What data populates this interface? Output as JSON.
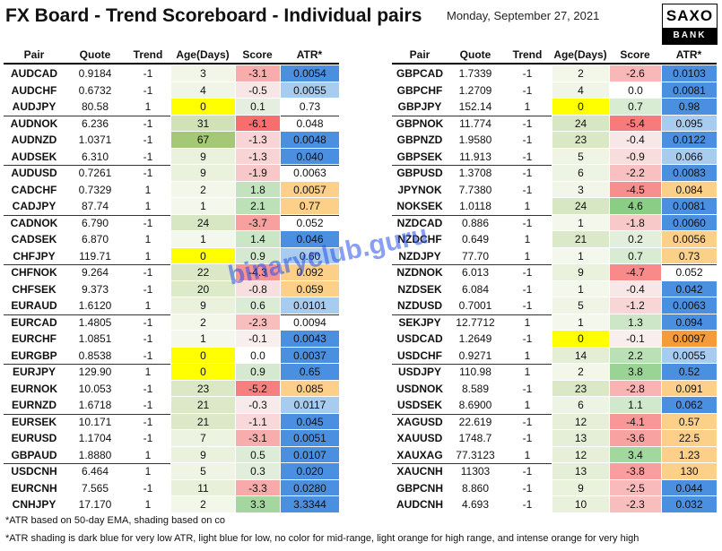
{
  "header": {
    "title": "FX Board - Trend Scoreboard - Individual pairs",
    "date": "Monday, September 27, 2021",
    "logo": [
      "SAXO",
      "BANK"
    ]
  },
  "watermark": "binaryclub.guru",
  "tables": [
    {
      "columns": [
        "Pair",
        "Quote",
        "Trend",
        "Age(Days)",
        "Score",
        "ATR*"
      ],
      "rows": [
        [
          "AUDCAD",
          "0.9184",
          "-1",
          "3",
          "-3.1",
          "0.0054"
        ],
        [
          "AUDCHF",
          "0.6732",
          "-1",
          "4",
          "-0.5",
          "0.0055"
        ],
        [
          "AUDJPY",
          "80.58",
          "1",
          "0",
          "0.1",
          "0.73"
        ],
        [
          "AUDNOK",
          "6.236",
          "-1",
          "31",
          "-6.1",
          "0.048"
        ],
        [
          "AUDNZD",
          "1.0371",
          "-1",
          "67",
          "-1.3",
          "0.0048"
        ],
        [
          "AUDSEK",
          "6.310",
          "-1",
          "9",
          "-1.3",
          "0.040"
        ],
        [
          "AUDUSD",
          "0.7261",
          "-1",
          "9",
          "-1.9",
          "0.0063"
        ],
        [
          "CADCHF",
          "0.7329",
          "1",
          "2",
          "1.8",
          "0.0057"
        ],
        [
          "CADJPY",
          "87.74",
          "1",
          "1",
          "2.1",
          "0.77"
        ],
        [
          "CADNOK",
          "6.790",
          "-1",
          "24",
          "-3.7",
          "0.052"
        ],
        [
          "CADSEK",
          "6.870",
          "1",
          "1",
          "1.4",
          "0.046"
        ],
        [
          "CHFJPY",
          "119.71",
          "1",
          "0",
          "0.9",
          "0.60"
        ],
        [
          "CHFNOK",
          "9.264",
          "-1",
          "22",
          "-4.3",
          "0.092"
        ],
        [
          "CHFSEK",
          "9.373",
          "-1",
          "20",
          "-0.8",
          "0.059"
        ],
        [
          "EURAUD",
          "1.6120",
          "1",
          "9",
          "0.6",
          "0.0101"
        ],
        [
          "EURCAD",
          "1.4805",
          "-1",
          "2",
          "-2.3",
          "0.0094"
        ],
        [
          "EURCHF",
          "1.0851",
          "-1",
          "1",
          "-0.1",
          "0.0043"
        ],
        [
          "EURGBP",
          "0.8538",
          "-1",
          "0",
          "0.0",
          "0.0037"
        ],
        [
          "EURJPY",
          "129.90",
          "1",
          "0",
          "0.9",
          "0.65"
        ],
        [
          "EURNOK",
          "10.053",
          "-1",
          "23",
          "-5.2",
          "0.085"
        ],
        [
          "EURNZD",
          "1.6718",
          "-1",
          "21",
          "-0.3",
          "0.0117"
        ],
        [
          "EURSEK",
          "10.171",
          "-1",
          "21",
          "-1.1",
          "0.045"
        ],
        [
          "EURUSD",
          "1.1704",
          "-1",
          "7",
          "-3.1",
          "0.0051"
        ],
        [
          "GBPAUD",
          "1.8880",
          "1",
          "9",
          "0.5",
          "0.0107"
        ],
        [
          "USDCNH",
          "6.464",
          "1",
          "5",
          "0.3",
          "0.020"
        ],
        [
          "EURCNH",
          "7.565",
          "-1",
          "11",
          "-3.3",
          "0.0280"
        ],
        [
          "CNHJPY",
          "17.170",
          "1",
          "2",
          "3.3",
          "3.3344"
        ]
      ],
      "atr_colors": [
        "#4a8fe0",
        "#a8ccf0",
        null,
        null,
        "#4a8fe0",
        "#4a8fe0",
        null,
        "#fdd08a",
        "#fdd08a",
        null,
        "#4a8fe0",
        "#a8ccf0",
        "#fdd08a",
        "#fdd08a",
        "#a8ccf0",
        null,
        "#4a8fe0",
        "#4a8fe0",
        "#4a8fe0",
        "#fdd08a",
        "#a8ccf0",
        "#4a8fe0",
        "#4a8fe0",
        "#4a8fe0",
        "#4a8fe0",
        "#4a8fe0",
        "#4a8fe0"
      ]
    },
    {
      "columns": [
        "Pair",
        "Quote",
        "Trend",
        "Age(Days)",
        "Score",
        "ATR*"
      ],
      "rows": [
        [
          "GBPCAD",
          "1.7339",
          "-1",
          "2",
          "-2.6",
          "0.0103"
        ],
        [
          "GBPCHF",
          "1.2709",
          "-1",
          "4",
          "0.0",
          "0.0081"
        ],
        [
          "GBPJPY",
          "152.14",
          "1",
          "0",
          "0.7",
          "0.98"
        ],
        [
          "GBPNOK",
          "11.774",
          "-1",
          "24",
          "-5.4",
          "0.095"
        ],
        [
          "GBPNZD",
          "1.9580",
          "-1",
          "23",
          "-0.4",
          "0.0122"
        ],
        [
          "GBPSEK",
          "11.913",
          "-1",
          "5",
          "-0.9",
          "0.066"
        ],
        [
          "GBPUSD",
          "1.3708",
          "-1",
          "6",
          "-2.2",
          "0.0083"
        ],
        [
          "JPYNOK",
          "7.7380",
          "-1",
          "3",
          "-4.5",
          "0.084"
        ],
        [
          "NOKSEK",
          "1.0118",
          "1",
          "24",
          "4.6",
          "0.0081"
        ],
        [
          "NZDCAD",
          "0.886",
          "-1",
          "1",
          "-1.8",
          "0.0060"
        ],
        [
          "NZDCHF",
          "0.649",
          "1",
          "21",
          "0.2",
          "0.0056"
        ],
        [
          "NZDJPY",
          "77.70",
          "1",
          "1",
          "0.7",
          "0.73"
        ],
        [
          "NZDNOK",
          "6.013",
          "-1",
          "9",
          "-4.7",
          "0.052"
        ],
        [
          "NZDSEK",
          "6.084",
          "-1",
          "1",
          "-0.4",
          "0.042"
        ],
        [
          "NZDUSD",
          "0.7001",
          "-1",
          "5",
          "-1.2",
          "0.0063"
        ],
        [
          "SEKJPY",
          "12.7712",
          "1",
          "1",
          "1.3",
          "0.094"
        ],
        [
          "USDCAD",
          "1.2649",
          "-1",
          "0",
          "-0.1",
          "0.0097"
        ],
        [
          "USDCHF",
          "0.9271",
          "1",
          "14",
          "2.2",
          "0.0055"
        ],
        [
          "USDJPY",
          "110.98",
          "1",
          "2",
          "3.8",
          "0.52"
        ],
        [
          "USDNOK",
          "8.589",
          "-1",
          "23",
          "-2.8",
          "0.091"
        ],
        [
          "USDSEK",
          "8.6900",
          "1",
          "6",
          "1.1",
          "0.062"
        ],
        [
          "XAGUSD",
          "22.619",
          "-1",
          "12",
          "-4.1",
          "0.57"
        ],
        [
          "XAUUSD",
          "1748.7",
          "-1",
          "13",
          "-3.6",
          "22.5"
        ],
        [
          "XAUXAG",
          "77.3123",
          "1",
          "12",
          "3.4",
          "1.23"
        ],
        [
          "XAUCNH",
          "11303",
          "-1",
          "13",
          "-3.8",
          "130"
        ],
        [
          "GBPCNH",
          "8.860",
          "-1",
          "9",
          "-2.5",
          "0.044"
        ],
        [
          "AUDCNH",
          "4.693",
          "-1",
          "10",
          "-2.3",
          "0.032"
        ]
      ],
      "atr_colors": [
        "#4a8fe0",
        "#4a8fe0",
        "#4a8fe0",
        "#a8ccf0",
        "#4a8fe0",
        "#a8ccf0",
        "#4a8fe0",
        "#fdd08a",
        "#4a8fe0",
        "#4a8fe0",
        "#fdd08a",
        "#fdd08a",
        null,
        "#4a8fe0",
        "#4a8fe0",
        "#4a8fe0",
        "#f59b3a",
        "#a8ccf0",
        "#4a8fe0",
        "#fdd08a",
        "#4a8fe0",
        "#fdd08a",
        "#fdd08a",
        "#fdd08a",
        "#fdd08a",
        "#4a8fe0",
        "#4a8fe0"
      ]
    }
  ],
  "footnotes": [
    "*ATR based on 50-day EMA, shading based on co",
    "*ATR shading is dark blue for very low ATR, light blue for low, no color for mid-range, light orange for high range, and intense orange for very high"
  ]
}
